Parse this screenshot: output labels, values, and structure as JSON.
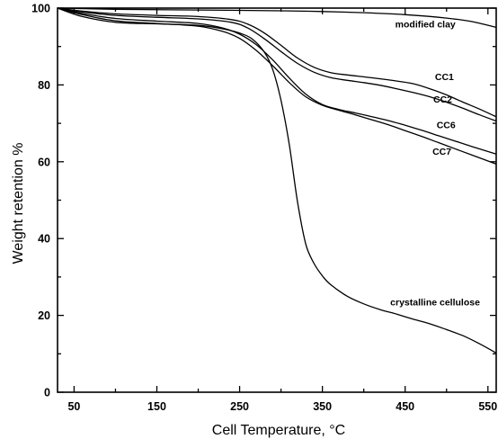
{
  "chart_data": {
    "type": "line",
    "title": "",
    "xlabel": "Cell Temperature, °C",
    "ylabel": "Weight retention %",
    "xlim": [
      30,
      560
    ],
    "ylim": [
      0,
      100
    ],
    "xticks": [
      50,
      150,
      250,
      350,
      450,
      550
    ],
    "yticks": [
      0,
      20,
      40,
      60,
      80,
      100
    ],
    "grid": false,
    "legend": "none",
    "series": [
      {
        "name": "modified clay",
        "label_at": [
          438,
          95
        ],
        "x": [
          30,
          100,
          200,
          300,
          350,
          400,
          450,
          500,
          530,
          560
        ],
        "y": [
          100,
          99.7,
          99.5,
          99.3,
          99.1,
          98.8,
          98.3,
          97.4,
          96.5,
          95.0
        ]
      },
      {
        "name": "CC1",
        "label_at": [
          486,
          81.3
        ],
        "x": [
          30,
          60,
          100,
          150,
          200,
          240,
          260,
          280,
          300,
          320,
          340,
          360,
          380,
          400,
          420,
          440,
          460,
          480,
          500,
          520,
          540,
          560
        ],
        "y": [
          100,
          99.2,
          98.5,
          98.1,
          97.8,
          97.0,
          95.8,
          93.5,
          90.3,
          87.0,
          84.6,
          83.2,
          82.6,
          82.1,
          81.6,
          81.0,
          80.3,
          79.0,
          77.4,
          75.5,
          73.7,
          71.7
        ]
      },
      {
        "name": "CC2",
        "label_at": [
          484,
          75.4
        ],
        "x": [
          30,
          60,
          100,
          150,
          200,
          240,
          260,
          280,
          300,
          320,
          340,
          360,
          380,
          400,
          420,
          440,
          460,
          480,
          500,
          520,
          540,
          560
        ],
        "y": [
          100,
          99.0,
          98.1,
          97.6,
          97.2,
          96.3,
          94.8,
          92.0,
          88.7,
          85.6,
          83.3,
          81.9,
          81.2,
          80.6,
          79.9,
          79.0,
          78.0,
          76.9,
          75.5,
          73.9,
          72.2,
          70.6
        ]
      },
      {
        "name": "CC6",
        "label_at": [
          488,
          68.7
        ],
        "x": [
          30,
          60,
          100,
          150,
          200,
          230,
          250,
          270,
          290,
          310,
          330,
          350,
          370,
          390,
          410,
          430,
          450,
          470,
          490,
          510,
          530,
          560
        ],
        "y": [
          100,
          98.6,
          97.3,
          96.6,
          96.0,
          94.8,
          93.2,
          90.5,
          86.5,
          81.8,
          77.6,
          74.9,
          73.6,
          72.7,
          71.7,
          70.7,
          69.5,
          68.2,
          66.8,
          65.4,
          64.0,
          62.0
        ]
      },
      {
        "name": "CC7",
        "label_at": [
          483,
          61.8
        ],
        "x": [
          30,
          60,
          100,
          150,
          200,
          230,
          250,
          270,
          290,
          310,
          330,
          350,
          370,
          390,
          410,
          430,
          450,
          470,
          490,
          510,
          530,
          560
        ],
        "y": [
          100,
          98.3,
          96.7,
          96.0,
          95.3,
          93.9,
          92.1,
          89.0,
          85.0,
          80.6,
          76.9,
          74.7,
          73.4,
          72.2,
          70.9,
          69.6,
          68.1,
          66.6,
          65.0,
          63.4,
          61.8,
          59.4
        ]
      },
      {
        "name": "crystalline cellulose",
        "label_at": [
          432,
          22.6
        ],
        "x": [
          30,
          60,
          100,
          150,
          200,
          230,
          250,
          265,
          280,
          290,
          300,
          310,
          320,
          330,
          340,
          350,
          360,
          380,
          400,
          420,
          440,
          460,
          480,
          500,
          520,
          540,
          560
        ],
        "y": [
          100,
          97.8,
          96.3,
          95.9,
          95.5,
          94.6,
          93.5,
          92.0,
          88.5,
          84.0,
          76.0,
          64.5,
          49.5,
          38.5,
          33.5,
          30.3,
          28.0,
          25.0,
          23.0,
          21.5,
          20.3,
          19.0,
          17.8,
          16.3,
          14.7,
          12.6,
          10.2
        ]
      }
    ]
  }
}
